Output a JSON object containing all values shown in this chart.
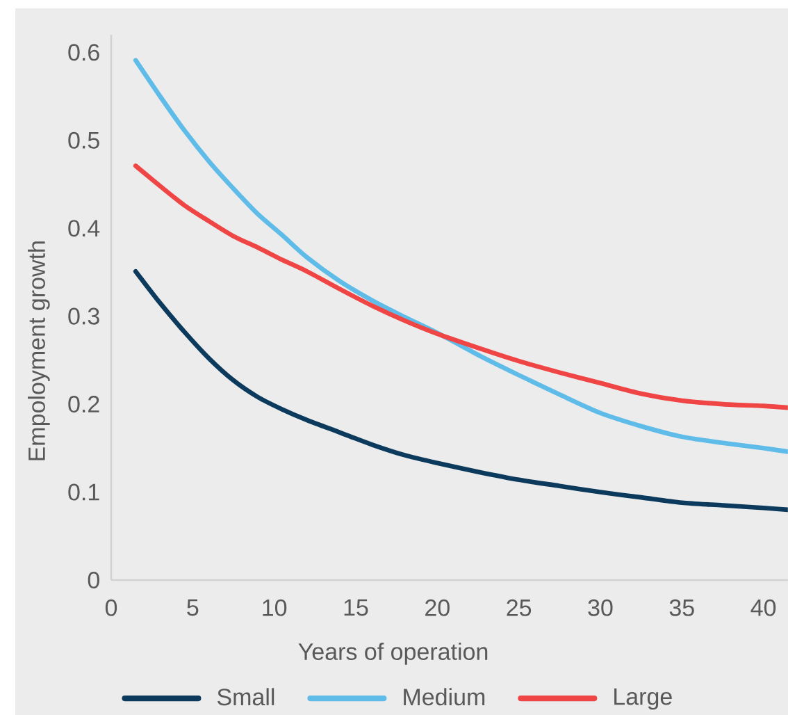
{
  "chart_data": {
    "type": "line",
    "xlabel": "Years of operation",
    "ylabel": "Empoloyment growth",
    "x": [
      1.5,
      3,
      4.5,
      6,
      7.5,
      9,
      10.5,
      12,
      14,
      16,
      18,
      20,
      22.5,
      25,
      27.5,
      30,
      32.5,
      35,
      37.5,
      40,
      41.5
    ],
    "series": [
      {
        "name": "Small",
        "color": "#0b3a5c",
        "values": [
          0.351,
          0.315,
          0.282,
          0.252,
          0.227,
          0.208,
          0.194,
          0.182,
          0.168,
          0.154,
          0.142,
          0.133,
          0.123,
          0.114,
          0.107,
          0.1,
          0.094,
          0.088,
          0.085,
          0.082,
          0.08
        ]
      },
      {
        "name": "Medium",
        "color": "#5fbce8",
        "values": [
          0.591,
          0.55,
          0.511,
          0.476,
          0.445,
          0.416,
          0.392,
          0.367,
          0.34,
          0.318,
          0.299,
          0.281,
          0.256,
          0.233,
          0.211,
          0.19,
          0.175,
          0.163,
          0.156,
          0.15,
          0.146
        ]
      },
      {
        "name": "Large",
        "color": "#ef4545",
        "values": [
          0.471,
          0.448,
          0.426,
          0.408,
          0.391,
          0.378,
          0.364,
          0.351,
          0.331,
          0.312,
          0.295,
          0.28,
          0.264,
          0.249,
          0.236,
          0.224,
          0.212,
          0.204,
          0.2,
          0.198,
          0.196
        ]
      }
    ],
    "xlim": [
      0,
      41.5
    ],
    "ylim": [
      0,
      0.62
    ],
    "xticks": [
      0,
      5,
      10,
      15,
      20,
      25,
      30,
      35,
      40
    ],
    "yticks": [
      0,
      0.1,
      0.2,
      0.3,
      0.4,
      0.5,
      0.6
    ],
    "legend": "bottom",
    "line_style": "solid"
  }
}
